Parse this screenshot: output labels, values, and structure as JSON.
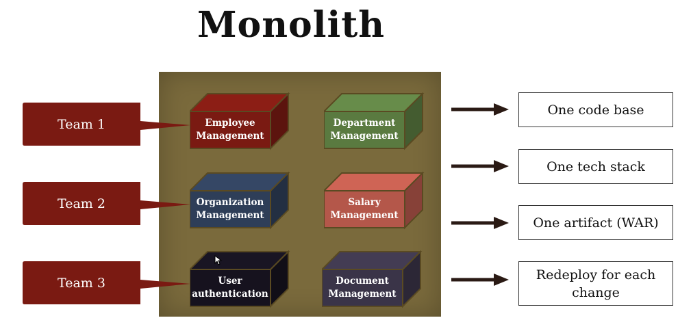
{
  "title": "Monolith",
  "teams": [
    "Team 1",
    "Team 2",
    "Team 3"
  ],
  "modules": [
    {
      "label": "Employee\nManagement",
      "color": "#7a1a12"
    },
    {
      "label": "Department\nManagement",
      "color": "#5a7a40"
    },
    {
      "label": "Organization\nManagement",
      "color": "#2e3e58"
    },
    {
      "label": "Salary\nManagement",
      "color": "#b4574a"
    },
    {
      "label": "User\nauthentication",
      "color": "#16121e"
    },
    {
      "label": "Document\nManagement",
      "color": "#3a3448"
    }
  ],
  "properties": [
    "One code base",
    "One tech stack",
    "One artifact (WAR)",
    "Redeploy for each change"
  ],
  "colors": {
    "team": "#7a1a12",
    "panel": "#7a6a3c"
  }
}
